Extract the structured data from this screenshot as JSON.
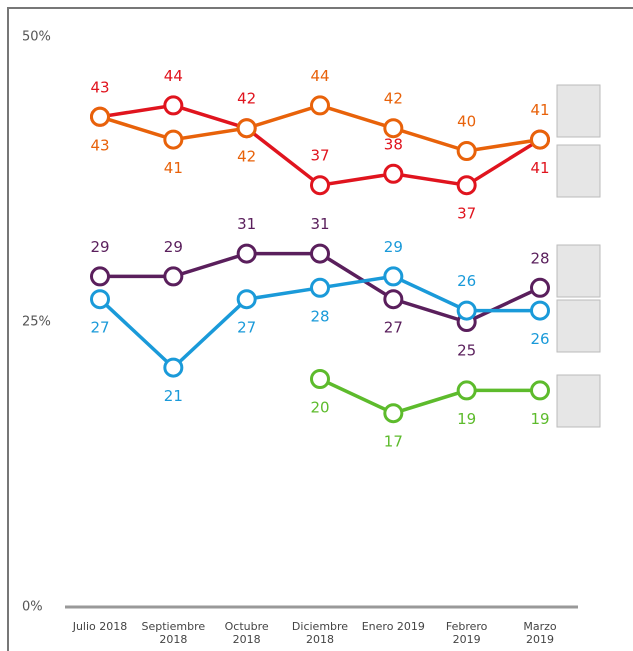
{
  "chart_data": {
    "type": "line",
    "categories": [
      "Julio 2018",
      "Septiembre 2018",
      "Octubre 2018",
      "Diciembre 2018",
      "Enero 2019",
      "Febrero 2019",
      "Marzo 2019"
    ],
    "series": [
      {
        "color": "#e0141e",
        "values": [
          43,
          44,
          42,
          37,
          38,
          37,
          41
        ]
      },
      {
        "color": "#e8620a",
        "values": [
          43,
          41,
          42,
          44,
          42,
          40,
          41
        ]
      },
      {
        "color": "#5a1f5c",
        "values": [
          29,
          29,
          31,
          31,
          27,
          25,
          28
        ]
      },
      {
        "color": "#1a9ad9",
        "values": [
          27,
          21,
          27,
          28,
          29,
          26,
          26
        ]
      },
      {
        "color": "#5dbb2c",
        "values": [
          null,
          null,
          null,
          20,
          17,
          19,
          19
        ]
      }
    ],
    "ylim": [
      0,
      50
    ],
    "yticks": [
      {
        "value": 0,
        "label": "0%"
      },
      {
        "value": 25,
        "label": "25%"
      },
      {
        "value": 50,
        "label": "50%"
      }
    ]
  }
}
